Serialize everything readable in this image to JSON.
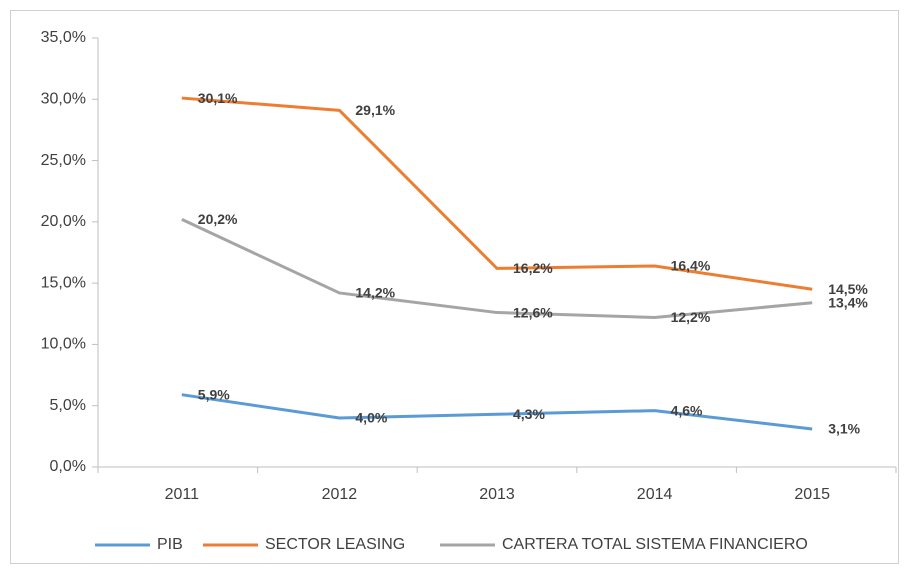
{
  "chart_data": {
    "type": "line",
    "categories": [
      "2011",
      "2012",
      "2013",
      "2014",
      "2015"
    ],
    "series": [
      {
        "name": "PIB",
        "color": "#5b9bd5",
        "values": [
          5.9,
          4.0,
          4.3,
          4.6,
          3.1
        ],
        "value_labels": [
          "5,9%",
          "4,0%",
          "4,3%",
          "4,6%",
          "3,1%"
        ]
      },
      {
        "name": "SECTOR LEASING",
        "color": "#ed7d31",
        "values": [
          30.1,
          29.1,
          16.2,
          16.4,
          14.5
        ],
        "value_labels": [
          "30,1%",
          "29,1%",
          "16,2%",
          "16,4%",
          "14,5%"
        ]
      },
      {
        "name": "CARTERA TOTAL SISTEMA FINANCIERO",
        "color": "#a5a5a5",
        "values": [
          20.2,
          14.2,
          12.6,
          12.2,
          13.4
        ],
        "value_labels": [
          "20,2%",
          "14,2%",
          "12,6%",
          "12,2%",
          "13,4%"
        ]
      }
    ],
    "ylim": [
      0,
      35
    ],
    "yticks": [
      {
        "value": 0,
        "label": "0,0%"
      },
      {
        "value": 5,
        "label": "5,0%"
      },
      {
        "value": 10,
        "label": "10,0%"
      },
      {
        "value": 15,
        "label": "15,0%"
      },
      {
        "value": 20,
        "label": "20,0%"
      },
      {
        "value": 25,
        "label": "25,0%"
      },
      {
        "value": 30,
        "label": "30,0%"
      },
      {
        "value": 35,
        "label": "35,0%"
      }
    ],
    "grid": false,
    "legend": "bottom"
  }
}
